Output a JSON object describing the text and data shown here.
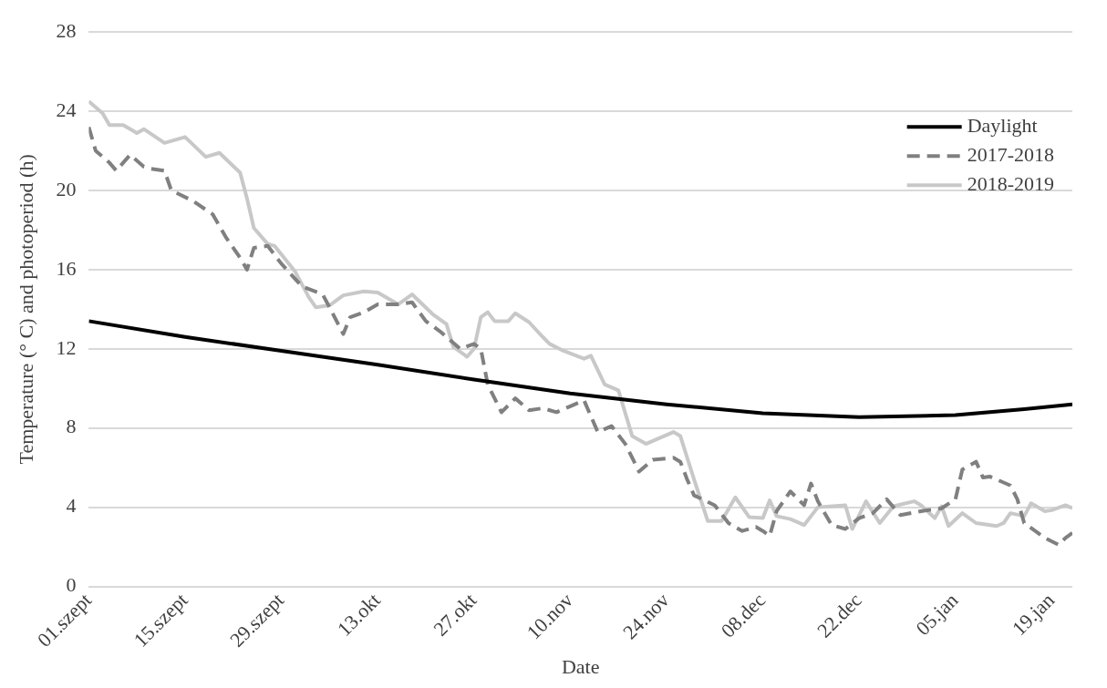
{
  "chart_data": {
    "type": "line",
    "xlabel": "Date",
    "ylabel": "Temperature (° C) and photoperiod (h)",
    "xlim": [
      "2018-09-01",
      "2019-01-22"
    ],
    "xticks": [
      {
        "value": "2018-09-01",
        "label": "01.szept"
      },
      {
        "value": "2018-09-15",
        "label": "15.szept"
      },
      {
        "value": "2018-09-29",
        "label": "29.szept"
      },
      {
        "value": "2018-10-13",
        "label": "13.okt"
      },
      {
        "value": "2018-10-27",
        "label": "27.okt"
      },
      {
        "value": "2018-11-10",
        "label": "10.nov"
      },
      {
        "value": "2018-11-24",
        "label": "24.nov"
      },
      {
        "value": "2018-12-08",
        "label": "08.dec"
      },
      {
        "value": "2018-12-22",
        "label": "22.dec"
      },
      {
        "value": "2019-01-05",
        "label": "05.jan"
      },
      {
        "value": "2019-01-19",
        "label": "19.jan"
      }
    ],
    "ylim": [
      0,
      28
    ],
    "yticks": [
      0,
      4,
      8,
      12,
      16,
      20,
      24,
      28
    ],
    "grid": "y",
    "legend": "top right",
    "marker": "none",
    "series": [
      {
        "name": "Daylight",
        "color": "#000000",
        "line_style": "solid",
        "x": [
          "2018-09-01",
          "2018-09-15",
          "2018-09-29",
          "2018-10-13",
          "2018-10-27",
          "2018-11-10",
          "2018-11-24",
          "2018-12-08",
          "2018-12-22",
          "2019-01-05",
          "2019-01-15",
          "2019-01-22"
        ],
        "values": [
          13.4,
          12.6,
          11.9,
          11.2,
          10.45,
          9.75,
          9.2,
          8.75,
          8.55,
          8.65,
          8.95,
          9.2
        ]
      },
      {
        "name": "2017-2018",
        "color": "#808080",
        "line_style": "dashed",
        "x": [
          "2018-09-01",
          "2018-09-02",
          "2018-09-04",
          "2018-09-05",
          "2018-09-07",
          "2018-09-09",
          "2018-09-10",
          "2018-09-12",
          "2018-09-13",
          "2018-09-16",
          "2018-09-19",
          "2018-09-21",
          "2018-09-23",
          "2018-09-24",
          "2018-09-25",
          "2018-09-27",
          "2018-09-29",
          "2018-10-02",
          "2018-10-05",
          "2018-10-06",
          "2018-10-08",
          "2018-10-09",
          "2018-10-11",
          "2018-10-13",
          "2018-10-16",
          "2018-10-18",
          "2018-10-20",
          "2018-10-22",
          "2018-10-25",
          "2018-10-27",
          "2018-10-28",
          "2018-10-29",
          "2018-10-31",
          "2018-11-02",
          "2018-11-04",
          "2018-11-06",
          "2018-11-08",
          "2018-11-10",
          "2018-11-12",
          "2018-11-14",
          "2018-11-16",
          "2018-11-18",
          "2018-11-20",
          "2018-11-22",
          "2018-11-25",
          "2018-11-26",
          "2018-11-27",
          "2018-11-28",
          "2018-12-01",
          "2018-12-03",
          "2018-12-05",
          "2018-12-07",
          "2018-12-08",
          "2018-12-09",
          "2018-12-10",
          "2018-12-12",
          "2018-12-14",
          "2018-12-15",
          "2018-12-16",
          "2018-12-18",
          "2018-12-20",
          "2018-12-22",
          "2018-12-24",
          "2018-12-26",
          "2018-12-28",
          "2018-12-31",
          "2019-01-03",
          "2019-01-05",
          "2019-01-06",
          "2019-01-08",
          "2019-01-09",
          "2019-01-10",
          "2019-01-13",
          "2019-01-14",
          "2019-01-15",
          "2019-01-18",
          "2019-01-20",
          "2019-01-21",
          "2019-01-22"
        ],
        "values": [
          23.2,
          22.0,
          21.4,
          21.0,
          21.8,
          21.2,
          21.1,
          21.0,
          20.0,
          19.5,
          18.8,
          17.6,
          16.6,
          16.0,
          17.1,
          17.2,
          16.3,
          15.15,
          14.75,
          14.1,
          12.75,
          13.6,
          13.85,
          14.25,
          14.25,
          14.35,
          13.4,
          12.9,
          12.0,
          12.25,
          12.0,
          10.2,
          8.8,
          9.5,
          8.9,
          9.0,
          8.8,
          9.1,
          9.4,
          7.8,
          8.1,
          7.2,
          5.8,
          6.4,
          6.5,
          6.3,
          5.4,
          4.6,
          4.1,
          3.2,
          2.8,
          3.0,
          2.8,
          2.55,
          3.8,
          4.8,
          4.1,
          5.2,
          4.3,
          3.1,
          2.9,
          3.45,
          3.7,
          4.4,
          3.6,
          3.8,
          3.95,
          4.4,
          5.9,
          6.3,
          5.5,
          5.55,
          5.1,
          4.4,
          3.2,
          2.45,
          2.1,
          2.45,
          2.7
        ]
      },
      {
        "name": "2018-2019",
        "color": "#c8c8c8",
        "line_style": "solid",
        "x": [
          "2018-09-01",
          "2018-09-03",
          "2018-09-04",
          "2018-09-06",
          "2018-09-08",
          "2018-09-09",
          "2018-09-12",
          "2018-09-15",
          "2018-09-18",
          "2018-09-20",
          "2018-09-23",
          "2018-09-24",
          "2018-09-25",
          "2018-09-27",
          "2018-09-28",
          "2018-10-01",
          "2018-10-03",
          "2018-10-04",
          "2018-10-06",
          "2018-10-08",
          "2018-10-11",
          "2018-10-13",
          "2018-10-16",
          "2018-10-18",
          "2018-10-21",
          "2018-10-23",
          "2018-10-24",
          "2018-10-26",
          "2018-10-27",
          "2018-10-28",
          "2018-10-29",
          "2018-10-30",
          "2018-11-01",
          "2018-11-02",
          "2018-11-04",
          "2018-11-06",
          "2018-11-07",
          "2018-11-09",
          "2018-11-12",
          "2018-11-13",
          "2018-11-15",
          "2018-11-17",
          "2018-11-19",
          "2018-11-21",
          "2018-11-25",
          "2018-11-26",
          "2018-11-28",
          "2018-11-30",
          "2018-12-02",
          "2018-12-04",
          "2018-12-06",
          "2018-12-08",
          "2018-12-09",
          "2018-12-10",
          "2018-12-12",
          "2018-12-14",
          "2018-12-16",
          "2018-12-20",
          "2018-12-21",
          "2018-12-23",
          "2018-12-25",
          "2018-12-27",
          "2018-12-30",
          "2018-12-31",
          "2019-01-02",
          "2019-01-03",
          "2019-01-04",
          "2019-01-06",
          "2019-01-08",
          "2019-01-11",
          "2019-01-12",
          "2019-01-13",
          "2019-01-15",
          "2019-01-16",
          "2019-01-18",
          "2019-01-19",
          "2019-01-21",
          "2019-01-22"
        ],
        "values": [
          24.5,
          23.9,
          23.3,
          23.3,
          22.9,
          23.1,
          22.4,
          22.7,
          21.7,
          21.9,
          20.9,
          19.6,
          18.1,
          17.3,
          17.2,
          15.9,
          14.6,
          14.1,
          14.2,
          14.7,
          14.9,
          14.85,
          14.25,
          14.75,
          13.75,
          13.25,
          12.1,
          11.6,
          12.0,
          13.6,
          13.85,
          13.4,
          13.4,
          13.8,
          13.35,
          12.6,
          12.25,
          11.9,
          11.5,
          11.65,
          10.2,
          9.9,
          7.6,
          7.2,
          7.8,
          7.6,
          5.4,
          3.3,
          3.3,
          4.5,
          3.5,
          3.45,
          4.35,
          3.55,
          3.4,
          3.1,
          4.0,
          4.1,
          2.9,
          4.3,
          3.2,
          4.05,
          4.3,
          4.1,
          3.45,
          4.05,
          3.05,
          3.7,
          3.2,
          3.05,
          3.2,
          3.7,
          3.55,
          4.2,
          3.8,
          3.85,
          4.1,
          3.95
        ]
      }
    ]
  }
}
